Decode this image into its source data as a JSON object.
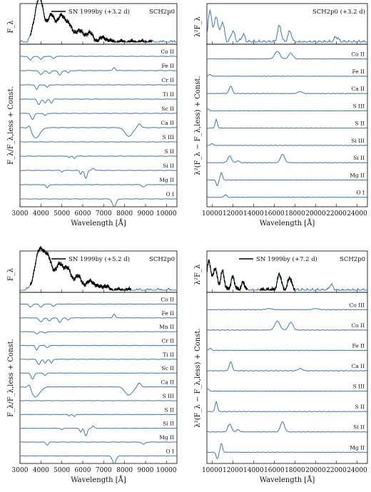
{
  "chart_data": [
    {
      "type": "line",
      "panel": "top-left",
      "top_ylabel": "F_λ",
      "bottom_ylabel": "F_λ/F_λ,less + Const.",
      "xlabel": "Wavelength [Å]",
      "xlim": [
        3000,
        10500
      ],
      "xticks": [
        3000,
        4000,
        5000,
        6000,
        7000,
        8000,
        9000,
        10000
      ],
      "legend": {
        "observed": "SN 1999by (+3.2 d)",
        "model": "SCH2p0",
        "placement": "top"
      },
      "observed_range": [
        3500,
        9300
      ],
      "ions": [
        "Co II",
        "Fe II",
        "Cr II",
        "Ti II",
        "Sc II",
        "Ca II",
        "S III",
        "S II",
        "Si II",
        "Mg II",
        "O I"
      ],
      "spectrum_peaks": [
        [
          3800,
          0.62
        ],
        [
          4000,
          0.78
        ],
        [
          4500,
          0.68
        ],
        [
          4950,
          0.6
        ],
        [
          5300,
          0.45
        ],
        [
          5800,
          0.3
        ],
        [
          6300,
          0.25
        ],
        [
          7000,
          0.12
        ]
      ],
      "ion_features": {
        "Co II": [
          [
            3500,
            -0.5,
            100
          ],
          [
            4000,
            -0.4,
            100
          ],
          [
            4600,
            -0.3,
            90
          ]
        ],
        "Fe II": [
          [
            4000,
            -0.5,
            120
          ],
          [
            4400,
            -0.4,
            100
          ],
          [
            4900,
            -0.6,
            100
          ],
          [
            5300,
            -0.3,
            80
          ],
          [
            7500,
            0.4,
            80
          ]
        ],
        "Cr II": [
          [
            3800,
            -0.6,
            80
          ],
          [
            4300,
            -0.3,
            80
          ]
        ],
        "Ti II": [
          [
            3900,
            -0.7,
            100
          ],
          [
            4200,
            -0.5,
            90
          ],
          [
            4500,
            -0.5,
            80
          ]
        ],
        "Sc II": [
          [
            3600,
            -0.8,
            100
          ],
          [
            4200,
            -0.3,
            80
          ]
        ],
        "Ca II": [
          [
            3450,
            0.6,
            100
          ],
          [
            3750,
            -1.3,
            280
          ],
          [
            8200,
            -1.1,
            250
          ],
          [
            8700,
            0.5,
            120
          ]
        ],
        "S III": [],
        "S II": [
          [
            5350,
            -0.2,
            60
          ],
          [
            5600,
            -0.3,
            60
          ]
        ],
        "Si II": [
          [
            5000,
            -0.2,
            60
          ],
          [
            5900,
            -0.5,
            60
          ],
          [
            6150,
            -1.0,
            90
          ],
          [
            6500,
            0.3,
            80
          ]
        ],
        "Mg II": [
          [
            4300,
            -0.4,
            80
          ],
          [
            8900,
            -0.3,
            100
          ]
        ],
        "O I": [
          [
            7500,
            -1.0,
            120
          ]
        ]
      }
    },
    {
      "type": "line",
      "panel": "top-right",
      "top_ylabel": "λ²F_λ",
      "bottom_ylabel": "λ²(F_λ − F_λ,less) + Const.",
      "xlabel": "Wavelength [Å]",
      "xlim": [
        9500,
        25000
      ],
      "xticks": [
        10000,
        12000,
        14000,
        16000,
        18000,
        20000,
        22000,
        24000
      ],
      "legend": {
        "model": "SCH2p0 (+3.2 d)",
        "placement": "top-right"
      },
      "ions": [
        "Co II",
        "Fe II",
        "Ca II",
        "S III",
        "S II",
        "Si III",
        "Si II",
        "Mg II",
        "O I"
      ],
      "spectrum_peaks": [
        [
          9800,
          0.85
        ],
        [
          10400,
          0.7
        ],
        [
          11000,
          0.55
        ],
        [
          12000,
          0.3
        ],
        [
          13000,
          0.2
        ],
        [
          16500,
          0.45
        ],
        [
          17500,
          0.3
        ],
        [
          22000,
          0.15
        ]
      ],
      "ion_features": {
        "Co II": [
          [
            16300,
            0.8,
            350
          ],
          [
            17600,
            0.6,
            300
          ]
        ],
        "Fe II": [
          [
            9800,
            0.2,
            150
          ]
        ],
        "Ca II": [
          [
            11800,
            0.8,
            200
          ],
          [
            18500,
            0.2,
            300
          ]
        ],
        "S III": [
          [
            9600,
            0.2,
            150
          ]
        ],
        "S II": [
          [
            10400,
            0.9,
            150
          ]
        ],
        "Si III": [
          [
            10000,
            0.2,
            150
          ]
        ],
        "Si II": [
          [
            11700,
            0.7,
            250
          ],
          [
            12500,
            0.2,
            200
          ],
          [
            16800,
            0.9,
            280
          ]
        ],
        "Mg II": [
          [
            10500,
            -0.6,
            150
          ],
          [
            10900,
            0.8,
            150
          ]
        ],
        "O I": [
          [
            11300,
            0.3,
            150
          ]
        ]
      }
    },
    {
      "type": "line",
      "panel": "bottom-left",
      "top_ylabel": "F_λ",
      "bottom_ylabel": "F_λ/F_λ,less + Const.",
      "xlabel": "Wavelength [Å]",
      "xlim": [
        3000,
        10500
      ],
      "xticks": [
        3000,
        4000,
        5000,
        6000,
        7000,
        8000,
        9000,
        10000
      ],
      "legend": {
        "observed": "SN 1999by (+5.2 d)",
        "model": "SCH2p0",
        "placement": "top"
      },
      "observed_range": [
        3500,
        8300
      ],
      "ions": [
        "Co II",
        "Fe II",
        "Mn II",
        "Cr II",
        "Ti II",
        "Sc II",
        "Ca II",
        "S III",
        "S II",
        "Si II",
        "Mg II",
        "O I"
      ],
      "spectrum_peaks": [
        [
          3800,
          0.55
        ],
        [
          4050,
          0.8
        ],
        [
          4400,
          0.72
        ],
        [
          4900,
          0.65
        ],
        [
          5300,
          0.5
        ],
        [
          5800,
          0.35
        ],
        [
          6400,
          0.25
        ],
        [
          7000,
          0.12
        ]
      ],
      "ion_features": {
        "Co II": [
          [
            3500,
            -0.4,
            100
          ],
          [
            4000,
            -0.4,
            100
          ],
          [
            4600,
            -0.3,
            90
          ]
        ],
        "Fe II": [
          [
            4000,
            -0.5,
            120
          ],
          [
            4400,
            -0.4,
            100
          ],
          [
            4900,
            -0.6,
            100
          ],
          [
            5300,
            -0.3,
            80
          ],
          [
            7500,
            0.5,
            80
          ]
        ],
        "Mn II": [
          [
            3800,
            -0.3,
            100
          ],
          [
            4200,
            -0.2,
            80
          ]
        ],
        "Cr II": [
          [
            3800,
            -0.6,
            80
          ],
          [
            4300,
            -0.3,
            80
          ]
        ],
        "Ti II": [
          [
            3900,
            -0.7,
            100
          ],
          [
            4200,
            -0.5,
            90
          ],
          [
            4500,
            -0.5,
            80
          ]
        ],
        "Sc II": [
          [
            3600,
            -0.8,
            100
          ],
          [
            4200,
            -0.3,
            80
          ]
        ],
        "Ca II": [
          [
            3450,
            0.6,
            100
          ],
          [
            3750,
            -1.3,
            280
          ],
          [
            8200,
            -1.1,
            250
          ],
          [
            8700,
            0.5,
            120
          ]
        ],
        "S III": [],
        "S II": [
          [
            5350,
            -0.2,
            60
          ],
          [
            5600,
            -0.3,
            60
          ]
        ],
        "Si II": [
          [
            5000,
            -0.2,
            60
          ],
          [
            5900,
            -0.5,
            60
          ],
          [
            6150,
            -1.0,
            90
          ],
          [
            6500,
            0.3,
            80
          ]
        ],
        "Mg II": [
          [
            4300,
            -0.4,
            80
          ],
          [
            8900,
            -0.3,
            100
          ]
        ],
        "O I": [
          [
            7500,
            -1.0,
            120
          ]
        ]
      }
    },
    {
      "type": "line",
      "panel": "bottom-right",
      "top_ylabel": "λ²F_λ",
      "bottom_ylabel": "λ²(F_λ − F_λ,less) + Const.",
      "xlabel": "Wavelength [Å]",
      "xlim": [
        9500,
        25000
      ],
      "xticks": [
        10000,
        12000,
        14000,
        16000,
        18000,
        20000,
        22000,
        24000
      ],
      "legend": {
        "observed": "SN 1999by (+7.2 d)",
        "model": "SCH2p0",
        "placement": "top"
      },
      "observed_ranges": [
        [
          9500,
          13400
        ],
        [
          14600,
          18000
        ]
      ],
      "ions": [
        "Co III",
        "Co II",
        "Fe II",
        "Ca II",
        "S III",
        "S II",
        "Si II",
        "Mg II"
      ],
      "spectrum_peaks": [
        [
          9700,
          0.8
        ],
        [
          10300,
          0.6
        ],
        [
          11000,
          0.5
        ],
        [
          12000,
          0.35
        ],
        [
          13000,
          0.2
        ],
        [
          16500,
          0.45
        ],
        [
          17500,
          0.35
        ],
        [
          21500,
          0.15
        ]
      ],
      "ion_features": {
        "Co III": [
          [
            15500,
            0.1,
            400
          ],
          [
            20000,
            0.1,
            400
          ]
        ],
        "Co II": [
          [
            16300,
            0.8,
            350
          ],
          [
            17600,
            0.7,
            300
          ]
        ],
        "Fe II": [
          [
            9800,
            0.2,
            150
          ]
        ],
        "Ca II": [
          [
            11800,
            0.8,
            200
          ],
          [
            18500,
            0.2,
            300
          ]
        ],
        "S III": [
          [
            9600,
            0.2,
            150
          ]
        ],
        "S II": [
          [
            10400,
            0.9,
            150
          ]
        ],
        "Si II": [
          [
            11700,
            0.7,
            250
          ],
          [
            12500,
            0.2,
            200
          ],
          [
            16800,
            0.9,
            280
          ]
        ],
        "Mg II": [
          [
            10500,
            -0.6,
            150
          ],
          [
            10900,
            0.8,
            150
          ]
        ]
      }
    }
  ],
  "colors": {
    "model": "#3a78b5",
    "observed": "#000000",
    "axes": "#000000"
  }
}
